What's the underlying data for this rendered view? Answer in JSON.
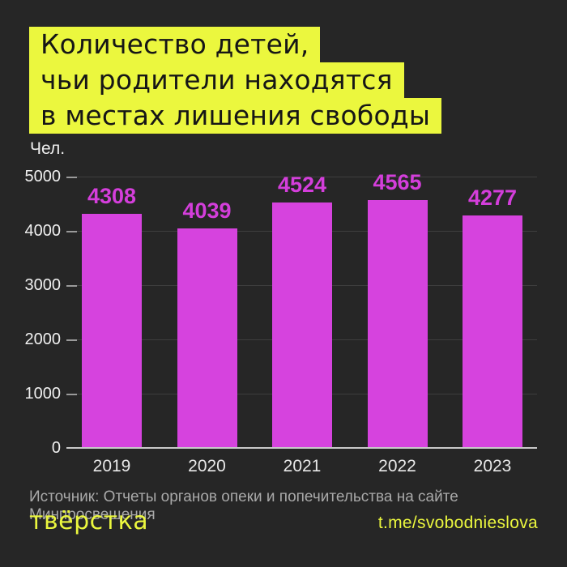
{
  "page": {
    "background_color": "#262626"
  },
  "title": {
    "lines": [
      "Количество детей,",
      "чьи родители находятся",
      "в местах лишения свободы"
    ],
    "highlight_color": "#ebf73e",
    "text_color": "#161616"
  },
  "chart_data": {
    "type": "bar",
    "categories": [
      "2019",
      "2020",
      "2021",
      "2022",
      "2023"
    ],
    "values": [
      4308,
      4039,
      4524,
      4565,
      4277
    ],
    "title": "Количество детей, чьи родители находятся в местах лишения свободы",
    "xlabel": "",
    "ylabel": "Чел.",
    "unit_label": "Чел.",
    "ylim": [
      0,
      5000
    ],
    "y_ticks": [
      0,
      1000,
      2000,
      3000,
      4000,
      5000
    ],
    "grid": true,
    "legend": "none",
    "bar_color": "#d643de",
    "value_label_color": "#d43edb",
    "axis_text_color": "#f0f0f0"
  },
  "footer": {
    "source": "Источник: Отчеты органов опеки и попечительства на сайте Минпросвещения",
    "logo_text": "твёрстка",
    "telegram": "t.me/svobodnieslova",
    "accent_color": "#ebf73e"
  }
}
